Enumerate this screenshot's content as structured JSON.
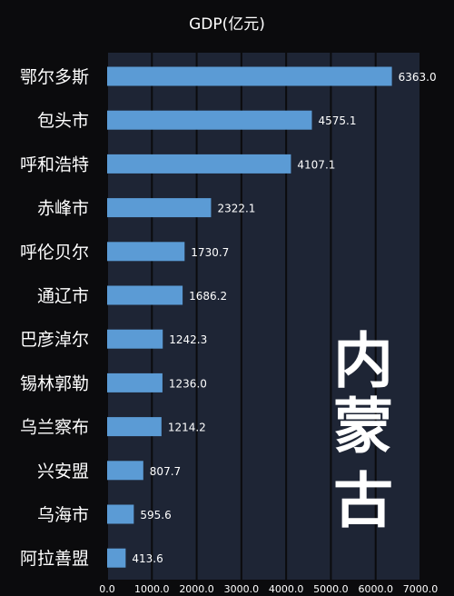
{
  "chart_data": {
    "type": "bar",
    "orientation": "horizontal",
    "title": "GDP(亿元)",
    "categories": [
      "鄂尔多斯",
      "包头市",
      "呼和浩特",
      "赤峰市",
      "呼伦贝尔",
      "通辽市",
      "巴彦淖尔",
      "锡林郭勒",
      "乌兰察布",
      "兴安盟",
      "乌海市",
      "阿拉善盟"
    ],
    "values": [
      6363.0,
      4575.1,
      4107.1,
      2322.1,
      1730.7,
      1686.2,
      1242.3,
      1236.0,
      1214.2,
      807.7,
      595.6,
      413.6
    ],
    "value_labels": [
      "6363.0",
      "4575.1",
      "4107.1",
      "2322.1",
      "1730.7",
      "1686.2",
      "1242.3",
      "1236.0",
      "1214.2",
      "807.7",
      "595.6",
      "413.6"
    ],
    "xlim": [
      0,
      7000
    ],
    "xticks": [
      "0.0",
      "1000.0",
      "2000.0",
      "3000.0",
      "4000.0",
      "5000.0",
      "6000.0",
      "7000.0"
    ],
    "grid": true,
    "legend": "none",
    "overlay_text": [
      "内",
      "蒙",
      "古"
    ],
    "colors": {
      "bar": "#5b9bd5",
      "plot_background": "#1e2535",
      "page_background": "#0b0b0d",
      "grid": "#0b0b0d",
      "text": "#ffffff"
    }
  }
}
